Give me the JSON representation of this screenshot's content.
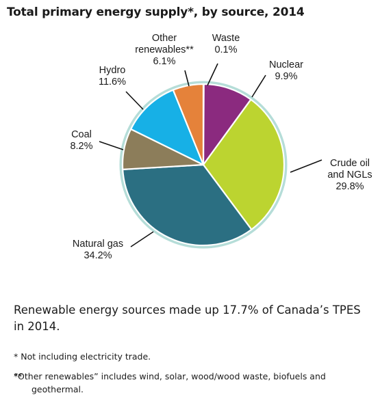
{
  "title": "Total primary energy supply*, by source, 2014",
  "chart_data": {
    "type": "pie",
    "title": "Total primary energy supply*, by source, 2014",
    "slices": [
      {
        "label": [
          "Waste"
        ],
        "value_label": "0.1%",
        "value": 0.1,
        "color": "#1a7a8c"
      },
      {
        "label": [
          "Nuclear"
        ],
        "value_label": "9.9%",
        "value": 9.9,
        "color": "#8b2a7f"
      },
      {
        "label": [
          "Crude oil",
          "and NGLs"
        ],
        "value_label": "29.8%",
        "value": 29.8,
        "color": "#bcd430"
      },
      {
        "label": [
          "Natural gas"
        ],
        "value_label": "34.2%",
        "value": 34.2,
        "color": "#2b6f82"
      },
      {
        "label": [
          "Coal"
        ],
        "value_label": "8.2%",
        "value": 8.2,
        "color": "#8c7d5a"
      },
      {
        "label": [
          "Hydro"
        ],
        "value_label": "11.6%",
        "value": 11.6,
        "color": "#17b0e6"
      },
      {
        "label": [
          "Other",
          "renewables**"
        ],
        "value_label": "6.1%",
        "value": 6.1,
        "color": "#e5823a"
      }
    ],
    "ring_color": "#b5ddd8"
  },
  "summary": "Renewable energy sources made up 17.7% of Canada’s TPES in 2014.",
  "footnotes": {
    "note1": "* Not including electricity trade.",
    "note2_mark": "**",
    "note2": "“Other renewables” includes wind, solar, wood/wood waste, biofuels and geothermal."
  }
}
